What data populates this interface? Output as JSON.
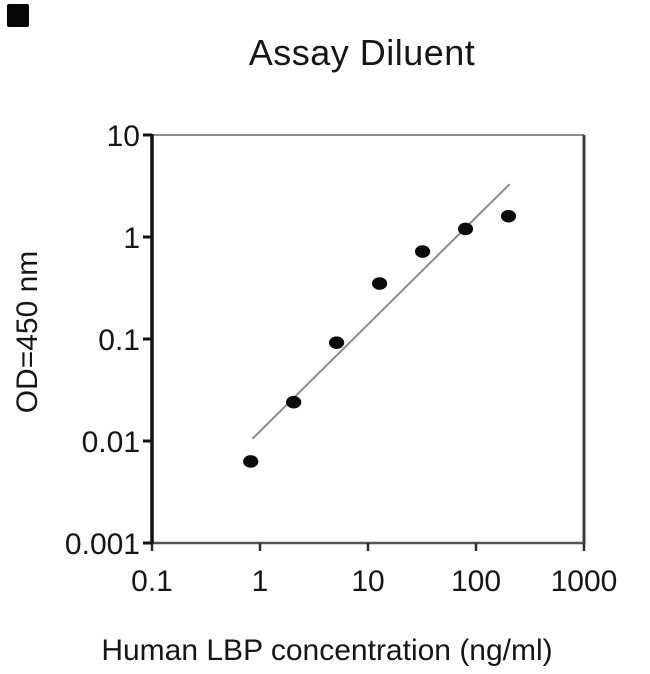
{
  "figure": {
    "corner_marker_color": "#060606",
    "background": "#ffffff",
    "text_color": "#161616"
  },
  "chart_data": {
    "type": "scatter",
    "title": "Assay Diluent",
    "xlabel": "Human LBP concentration (ng/ml)",
    "ylabel": "OD=450 nm",
    "x_scale": "log",
    "y_scale": "log",
    "xlim": [
      0.1,
      1000
    ],
    "ylim": [
      0.001,
      10
    ],
    "x_ticks": [
      0.1,
      1,
      10,
      100,
      1000
    ],
    "x_tick_labels": [
      "0.1",
      "1",
      "10",
      "100",
      "1000"
    ],
    "y_ticks": [
      0.001,
      0.01,
      0.1,
      1,
      10
    ],
    "y_tick_labels": [
      "0.001",
      "0.01",
      "0.1",
      "1",
      "10"
    ],
    "grid": false,
    "legend": null,
    "series": [
      {
        "name": "fit-line",
        "kind": "line",
        "color": "#8c8c8c",
        "x": [
          0.85,
          205
        ],
        "y": [
          0.0105,
          3.3
        ]
      },
      {
        "name": "standard-points",
        "kind": "scatter",
        "marker": "filled-circle",
        "color": "#0b0b0b",
        "x": [
          0.82,
          2.05,
          5.12,
          12.8,
          32,
          80,
          200
        ],
        "y": [
          0.0063,
          0.024,
          0.092,
          0.35,
          0.72,
          1.2,
          1.6
        ]
      }
    ],
    "frame_colors": {
      "left": "#121212",
      "bottom": "#555555",
      "top": "#8f8f8f",
      "right": "#3d3d3d"
    },
    "tick_color": "#2e2e2e",
    "tick_text_color": "#161616"
  }
}
